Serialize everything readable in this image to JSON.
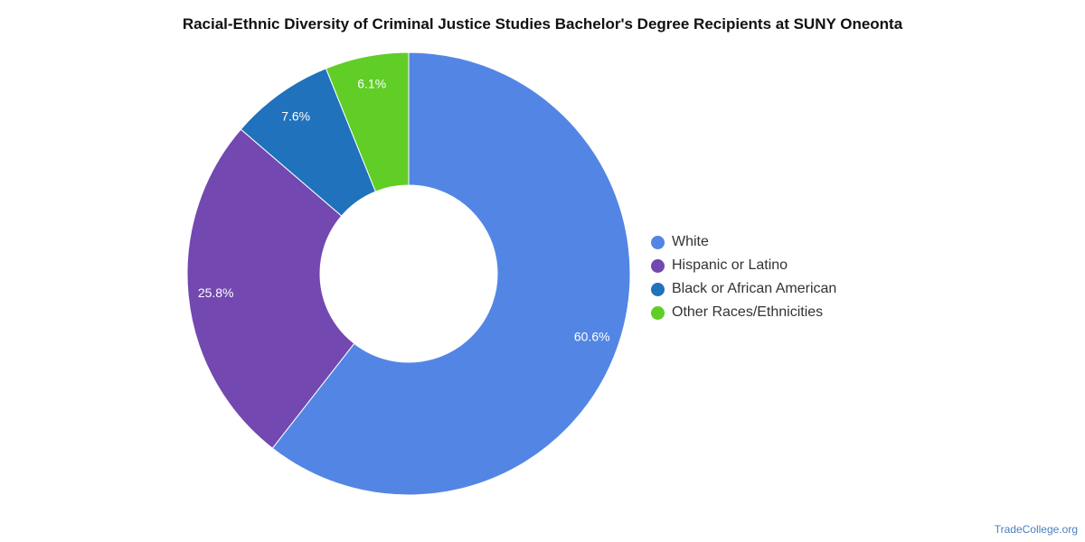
{
  "chart_data": {
    "type": "pie",
    "title": "Racial-Ethnic Diversity of Criminal Justice Studies Bachelor's Degree Recipients at SUNY Oneonta",
    "legend_position": "right",
    "slices": [
      {
        "label": "White",
        "value": 60.6,
        "display": "60.6%",
        "color": "#5386e4"
      },
      {
        "label": "Hispanic or Latino",
        "value": 25.8,
        "display": "25.8%",
        "color": "#7348b0"
      },
      {
        "label": "Black or African American",
        "value": 7.6,
        "display": "7.6%",
        "color": "#1f72bb"
      },
      {
        "label": "Other Races/Ethnicities",
        "value": 6.1,
        "display": "6.1%",
        "color": "#61cd27"
      }
    ]
  },
  "credit": "TradeCollege.org"
}
